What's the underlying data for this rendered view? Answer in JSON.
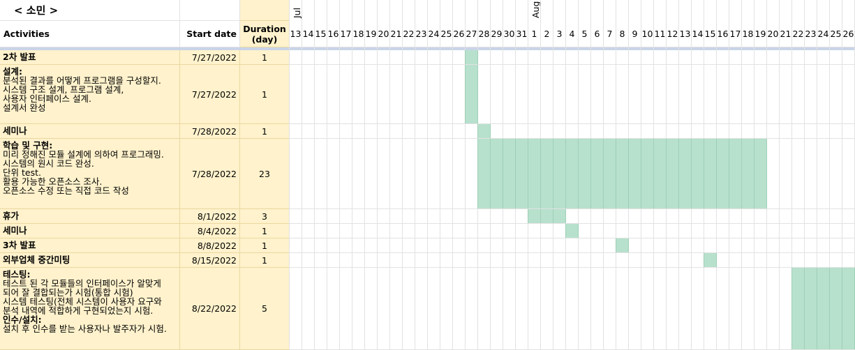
{
  "sheet": {
    "title": "< 소민 >",
    "headers": {
      "activities": "Activities",
      "start_date": "Start date",
      "duration": "Duration\n(day)"
    },
    "months": [
      {
        "label": "Jul",
        "day_index": 0
      },
      {
        "label": "Aug",
        "day_index": 19
      }
    ],
    "days": [
      "13",
      "14",
      "15",
      "16",
      "17",
      "18",
      "19",
      "20",
      "21",
      "22",
      "23",
      "24",
      "25",
      "26",
      "27",
      "28",
      "29",
      "30",
      "31",
      "1",
      "2",
      "3",
      "4",
      "5",
      "6",
      "7",
      "8",
      "9",
      "10",
      "11",
      "12",
      "13",
      "14",
      "15",
      "16",
      "17",
      "18",
      "19",
      "20",
      "21",
      "22",
      "23",
      "24",
      "25",
      "26"
    ],
    "bar_color": "#b7e1cd",
    "highlight_color": "#fff2cc",
    "rows": [
      {
        "title": "2차 발표",
        "body": "",
        "start": "7/27/2022",
        "duration": "1",
        "start_index": 14,
        "length": 1
      },
      {
        "title": "설계:",
        "body": "분석된 결과를 어떻게 프로그램을 구성할지.\n시스템 구조 설계, 프로그램 설계,\n사용자 인터페이스 설계.\n설계서 완성",
        "start": "7/27/2022",
        "duration": "1",
        "start_index": 14,
        "length": 1
      },
      {
        "title": "세미나",
        "body": "",
        "start": "7/28/2022",
        "duration": "1",
        "start_index": 15,
        "length": 1
      },
      {
        "title": "학습 및 구현:",
        "body": "미리 정해진 모듈 설계에 의하여 프로그래밍.\n시스템의 원시 코드 완성.\n단위 test.\n활용 가능한 오픈소스 조사.\n오픈소스 수정 또는 직접 코드 작성",
        "start": "7/28/2022",
        "duration": "23",
        "start_index": 15,
        "length": 23
      },
      {
        "title": "휴가",
        "body": "",
        "start": "8/1/2022",
        "duration": "3",
        "start_index": 19,
        "length": 3
      },
      {
        "title": "세미나",
        "body": "",
        "start": "8/4/2022",
        "duration": "1",
        "start_index": 22,
        "length": 1
      },
      {
        "title": "3차 발표",
        "body": "",
        "start": "8/8/2022",
        "duration": "1",
        "start_index": 26,
        "length": 1
      },
      {
        "title": "외부업체 중간미팅",
        "body": "",
        "start": "8/15/2022",
        "duration": "1",
        "start_index": 33,
        "length": 1
      },
      {
        "title": "테스팅:",
        "body": "테스트 된 각 모듈들의 인터페이스가 알맞게\n되어 잘 결합되는가 시험(통합 시험)\n시스템 테스팅(전체 시스템이 사용자 요구와\n분석 내역에 적합하게 구현되었는지 시험.",
        "title2": "인수/설치:",
        "body2": "설치 후 인수를 받는 사용자나 발주자가 시험.",
        "start": "8/22/2022",
        "duration": "5",
        "start_index": 40,
        "length": 5
      }
    ]
  }
}
